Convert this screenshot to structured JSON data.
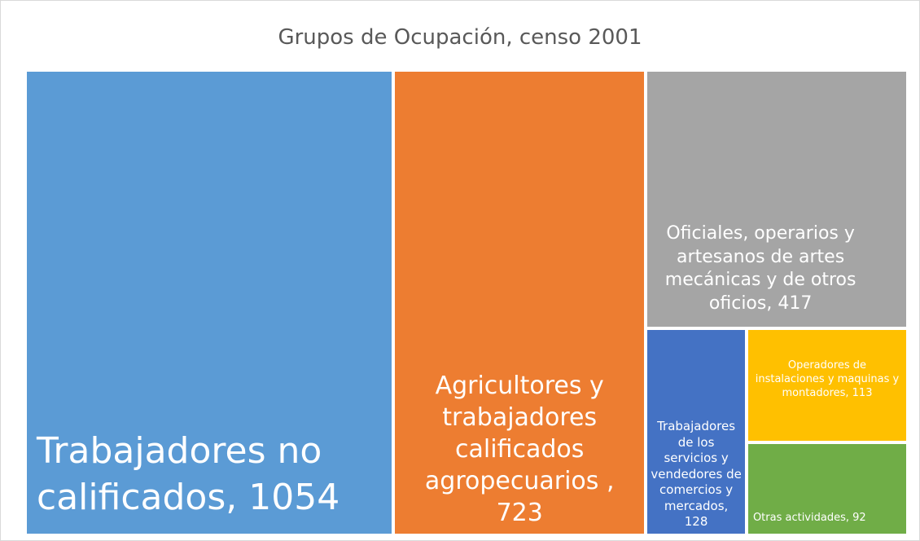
{
  "chart_data": {
    "type": "treemap",
    "title": "Grupos de Ocupación, censo 2001",
    "categories": [
      "Trabajadores no calificados, 1054",
      "Agricultores y trabajadores calificados agropecuarios , 723",
      "Oficiales, operarios y artesanos de artes mecánicas y de otros oficios, 417",
      "Trabajadores de los servicios y vendedores de comercios y mercados, 128",
      "Operadores de instalaciones y maquinas y montadores, 113",
      "Otras actividades, 92"
    ],
    "values": [
      1054,
      723,
      417,
      128,
      113,
      92
    ],
    "colors": [
      "#5b9bd5",
      "#ed7d31",
      "#a5a5a5",
      "#4472c4",
      "#ffc000",
      "#70ad47"
    ]
  }
}
